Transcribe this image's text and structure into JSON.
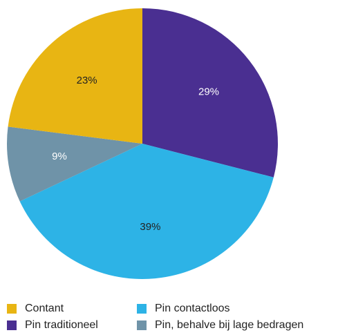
{
  "chart_data": {
    "type": "pie",
    "slices": [
      {
        "label": "Pin traditioneel",
        "value": 29,
        "display": "29%",
        "color": "#4a2f91",
        "text_color": "#ffffff"
      },
      {
        "label": "Pin contactloos",
        "value": 39,
        "display": "39%",
        "color": "#2db3e6",
        "text_color": "#222222"
      },
      {
        "label": "Pin, behalve bij lage bedragen",
        "value": 9,
        "display": "9%",
        "color": "#6f93a8",
        "text_color": "#ffffff"
      },
      {
        "label": "Contant",
        "value": 23,
        "display": "23%",
        "color": "#e8b513",
        "text_color": "#222222"
      }
    ],
    "start_angle_deg": 0,
    "direction": "clockwise",
    "legend_position": "bottom",
    "legend": [
      {
        "label": "Contant",
        "color": "#e8b513"
      },
      {
        "label": "Pin contactloos",
        "color": "#2db3e6"
      },
      {
        "label": "Pin traditioneel",
        "color": "#4a2f91"
      },
      {
        "label": "Pin, behalve bij lage bedragen",
        "color": "#6f93a8"
      }
    ]
  }
}
